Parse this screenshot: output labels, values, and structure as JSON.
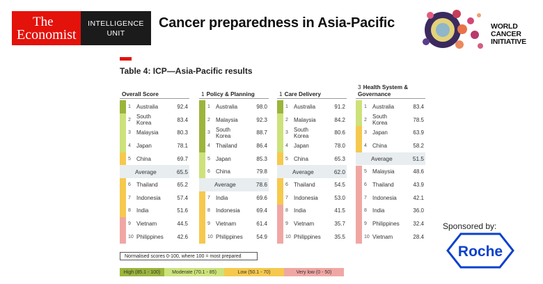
{
  "header": {
    "logo_line1": "The",
    "logo_line2": "Economist",
    "logo_intel": "INTELLIGENCE",
    "logo_unit": "UNIT",
    "title": "Cancer preparedness in Asia-Pacific",
    "wci_line1": "WORLD",
    "wci_line2": "CANCER",
    "wci_line3": "INITIATIVE"
  },
  "table": {
    "title": "Table 4: ICP—Asia-Pacific results",
    "colors": {
      "high": "#9bb53c",
      "moderate": "#cde27a",
      "low": "#f6c94e",
      "very_low": "#f0a7a4"
    },
    "columns": [
      {
        "num": "",
        "header": "Overall Score",
        "rows": [
          {
            "rank": "1",
            "name": "Australia",
            "value": "92.4"
          },
          {
            "rank": "2",
            "name": "South Korea",
            "value": "83.4"
          },
          {
            "rank": "3",
            "name": "Malaysia",
            "value": "80.3"
          },
          {
            "rank": "4",
            "name": "Japan",
            "value": "78.1"
          },
          {
            "rank": "5",
            "name": "China",
            "value": "69.7"
          },
          {
            "rank": "",
            "name": "Average",
            "value": "65.5",
            "avg": true
          },
          {
            "rank": "6",
            "name": "Thailand",
            "value": "65.2"
          },
          {
            "rank": "7",
            "name": "Indonesia",
            "value": "57.4"
          },
          {
            "rank": "8",
            "name": "India",
            "value": "51.6"
          },
          {
            "rank": "9",
            "name": "Vietnam",
            "value": "44.5"
          },
          {
            "rank": "10",
            "name": "Philippines",
            "value": "42.6"
          }
        ]
      },
      {
        "num": "1",
        "header": "Policy & Planning",
        "rows": [
          {
            "rank": "1",
            "name": "Australia",
            "value": "98.0"
          },
          {
            "rank": "2",
            "name": "Malaysia",
            "value": "92.3"
          },
          {
            "rank": "3",
            "name": "South Korea",
            "value": "88.7"
          },
          {
            "rank": "4",
            "name": "Thailand",
            "value": "86.4"
          },
          {
            "rank": "5",
            "name": "Japan",
            "value": "85.3"
          },
          {
            "rank": "6",
            "name": "China",
            "value": "79.8"
          },
          {
            "rank": "",
            "name": "Average",
            "value": "78.6",
            "avg": true
          },
          {
            "rank": "7",
            "name": "India",
            "value": "69.6"
          },
          {
            "rank": "8",
            "name": "Indonesia",
            "value": "69.4"
          },
          {
            "rank": "9",
            "name": "Vietnam",
            "value": "61.4"
          },
          {
            "rank": "10",
            "name": "Philippines",
            "value": "54.9"
          }
        ]
      },
      {
        "num": "1",
        "header": "Care Delivery",
        "rows": [
          {
            "rank": "1",
            "name": "Australia",
            "value": "91.2"
          },
          {
            "rank": "2",
            "name": "Malaysia",
            "value": "84.2"
          },
          {
            "rank": "3",
            "name": "South Korea",
            "value": "80.6"
          },
          {
            "rank": "4",
            "name": "Japan",
            "value": "78.0"
          },
          {
            "rank": "5",
            "name": "China",
            "value": "65.3"
          },
          {
            "rank": "",
            "name": "Average",
            "value": "62.0",
            "avg": true
          },
          {
            "rank": "6",
            "name": "Thailand",
            "value": "54.5"
          },
          {
            "rank": "7",
            "name": "Indonesia",
            "value": "53.0"
          },
          {
            "rank": "8",
            "name": "India",
            "value": "41.5"
          },
          {
            "rank": "9",
            "name": "Vietnam",
            "value": "35.7"
          },
          {
            "rank": "10",
            "name": "Philippines",
            "value": "35.5"
          }
        ]
      },
      {
        "num": "3",
        "header": "Health System & Governance",
        "rows": [
          {
            "rank": "1",
            "name": "Australia",
            "value": "83.4"
          },
          {
            "rank": "2",
            "name": "South Korea",
            "value": "78.5"
          },
          {
            "rank": "3",
            "name": "Japan",
            "value": "63.9"
          },
          {
            "rank": "4",
            "name": "China",
            "value": "58.2"
          },
          {
            "rank": "",
            "name": "Average",
            "value": "51.5",
            "avg": true
          },
          {
            "rank": "5",
            "name": "Malaysia",
            "value": "48.6"
          },
          {
            "rank": "6",
            "name": "Thailand",
            "value": "43.9"
          },
          {
            "rank": "7",
            "name": "Indonesia",
            "value": "42.1"
          },
          {
            "rank": "8",
            "name": "India",
            "value": "36.0"
          },
          {
            "rank": "9",
            "name": "Philippines",
            "value": "32.4"
          },
          {
            "rank": "10",
            "name": "Vietnam",
            "value": "28.4"
          }
        ]
      }
    ]
  },
  "legend": {
    "note": "Normalised scores 0-100, where 100 = most prepared",
    "items": [
      {
        "label": "High (85.1 - 100)",
        "color": "#9bb53c"
      },
      {
        "label": "Moderate (70.1 - 85)",
        "color": "#cde27a"
      },
      {
        "label": "Low (50.1 - 70)",
        "color": "#f6c94e"
      },
      {
        "label": "Very low (0 - 50)",
        "color": "#f0a7a4"
      }
    ]
  },
  "sponsor": {
    "label": "Sponsored by:",
    "brand": "Roche"
  }
}
